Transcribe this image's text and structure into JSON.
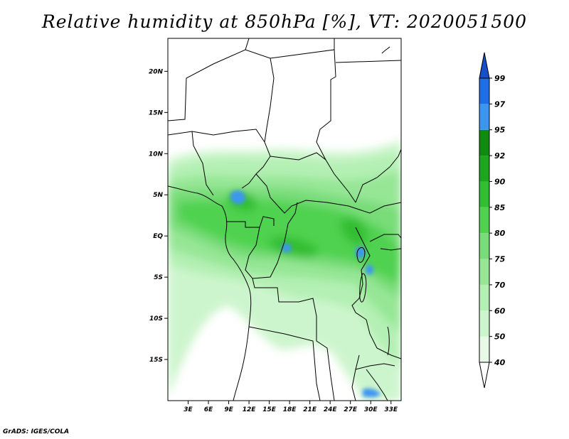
{
  "title": "Relative humidity at 850hPa [%], VT: 2020051500",
  "credit": "GrADS: IGES/COLA",
  "map": {
    "lon_range_deg": [
      0,
      34.5
    ],
    "lat_range_deg": [
      -20,
      24
    ],
    "lat_labels": [
      {
        "lat": 20,
        "label": "20N"
      },
      {
        "lat": 15,
        "label": "15N"
      },
      {
        "lat": 10,
        "label": "10N"
      },
      {
        "lat": 5,
        "label": "5N"
      },
      {
        "lat": 0,
        "label": "EQ"
      },
      {
        "lat": -5,
        "label": "5S"
      },
      {
        "lat": -10,
        "label": "10S"
      },
      {
        "lat": -15,
        "label": "15S"
      }
    ],
    "lon_labels": [
      {
        "lon": 3,
        "label": "3E"
      },
      {
        "lon": 6,
        "label": "6E"
      },
      {
        "lon": 9,
        "label": "9E"
      },
      {
        "lon": 12,
        "label": "12E"
      },
      {
        "lon": 15,
        "label": "15E"
      },
      {
        "lon": 18,
        "label": "18E"
      },
      {
        "lon": 21,
        "label": "21E"
      },
      {
        "lon": 24,
        "label": "24E"
      },
      {
        "lon": 27,
        "label": "27E"
      },
      {
        "lon": 30,
        "label": "30E"
      },
      {
        "lon": 33,
        "label": "33E"
      }
    ]
  },
  "colorbar": {
    "bins": [
      {
        "lower": 40,
        "upper": 50,
        "color": "#e6fae6"
      },
      {
        "lower": 50,
        "upper": 60,
        "color": "#cdf5cd"
      },
      {
        "lower": 60,
        "upper": 70,
        "color": "#b4f0b4"
      },
      {
        "lower": 70,
        "upper": 75,
        "color": "#96e696"
      },
      {
        "lower": 75,
        "upper": 80,
        "color": "#78dc78"
      },
      {
        "lower": 80,
        "upper": 85,
        "color": "#50d250"
      },
      {
        "lower": 85,
        "upper": 90,
        "color": "#32be32"
      },
      {
        "lower": 90,
        "upper": 92,
        "color": "#1ea51e"
      },
      {
        "lower": 92,
        "upper": 95,
        "color": "#0f8c0f"
      },
      {
        "lower": 95,
        "upper": 97,
        "color": "#3c96f0"
      },
      {
        "lower": 97,
        "upper": 99,
        "color": "#1e6ee6"
      }
    ],
    "over_color": "#1450c8",
    "under_color": "#ffffff",
    "labels": [
      "40",
      "50",
      "60",
      "70",
      "75",
      "80",
      "85",
      "90",
      "92",
      "95",
      "97",
      "99"
    ]
  },
  "colors": {
    "land": "#ffffff",
    "border": "#000000"
  }
}
